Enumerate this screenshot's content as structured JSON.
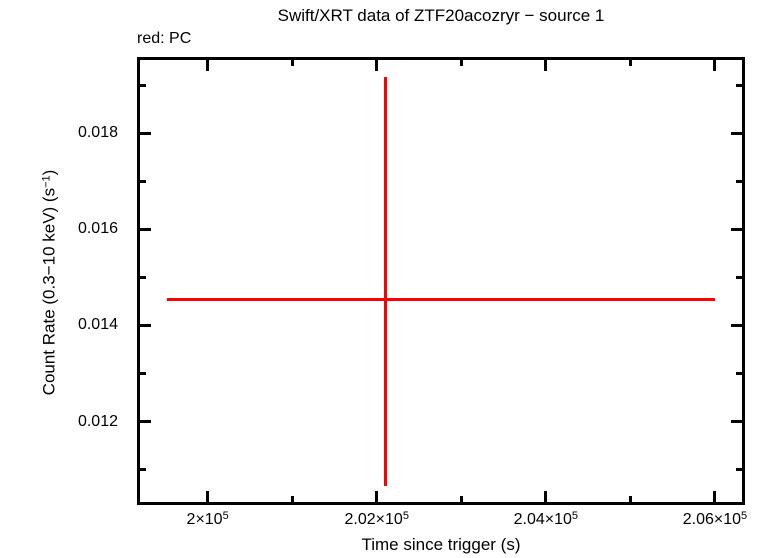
{
  "chart": {
    "title": "Swift/XRT data of ZTF20acozryr − source 1",
    "legend": "red: PC",
    "xlabel": "Time since trigger (s)",
    "ylabel_pre": "Count Rate (0.3−10 keV) (s",
    "ylabel_sup": "−1",
    "ylabel_post": ")"
  },
  "colors": {
    "data_red": "#ff0000",
    "axis": "#000000",
    "background": "#ffffff"
  },
  "chart_data": {
    "type": "scatter",
    "title": "Swift/XRT data of ZTF20acozryr − source 1",
    "subtitle": "red: PC",
    "xlabel": "Time since trigger (s)",
    "ylabel": "Count Rate (0.3−10 keV) (s^−1)",
    "grid": false,
    "legend_position": "top-left",
    "xlim": [
      199200,
      206320
    ],
    "ylim": [
      0.01033,
      0.01952
    ],
    "x_major_ticks": [
      200000,
      202000,
      204000,
      206000
    ],
    "x_minor_ticks": [
      201000,
      203000,
      205000
    ],
    "y_major_ticks": [
      0.012,
      0.014,
      0.016,
      0.018
    ],
    "y_minor_ticks": [
      0.011,
      0.013,
      0.015,
      0.017,
      0.019
    ],
    "x_tick_labels": [
      {
        "value": 200000,
        "base": "2×10",
        "exp": "5"
      },
      {
        "value": 202000,
        "base": "2.02×10",
        "exp": "5"
      },
      {
        "value": 204000,
        "base": "2.04×10",
        "exp": "5"
      },
      {
        "value": 206000,
        "base": "2.06×10",
        "exp": "5"
      }
    ],
    "y_tick_labels": [
      {
        "value": 0.012,
        "label": "0.012"
      },
      {
        "value": 0.014,
        "label": "0.014"
      },
      {
        "value": 0.016,
        "label": "0.016"
      },
      {
        "value": 0.018,
        "label": "0.018"
      }
    ],
    "series": [
      {
        "name": "PC",
        "color": "#ff0000",
        "points": [
          {
            "x": 202100,
            "x_lo": 199520,
            "x_hi": 206000,
            "y": 0.01453,
            "y_lo": 0.01066,
            "y_hi": 0.01916
          }
        ]
      }
    ]
  }
}
